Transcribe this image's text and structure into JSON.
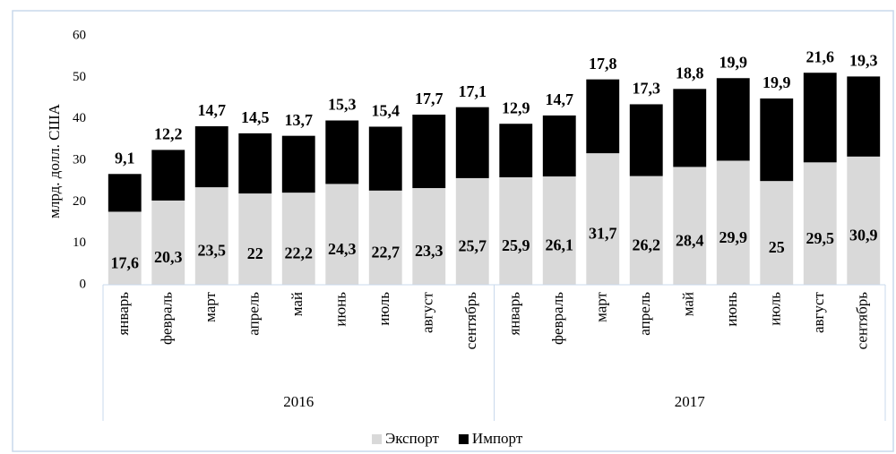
{
  "chart_data": {
    "type": "stacked-bar",
    "y_label": "млрд. долл. США",
    "groups": [
      {
        "name": "2016",
        "categories": [
          "январь",
          "февраль",
          "март",
          "апрель",
          "май",
          "июнь",
          "июль",
          "август",
          "сентябрь"
        ]
      },
      {
        "name": "2017",
        "categories": [
          "январь",
          "февраль",
          "март",
          "апрель",
          "май",
          "июнь",
          "июль",
          "август",
          "сентябрь"
        ]
      }
    ],
    "series": [
      {
        "name": "Экспорт",
        "color": "#d9d9d9",
        "values": [
          17.6,
          20.3,
          23.5,
          22,
          22.2,
          24.3,
          22.7,
          23.3,
          25.7,
          25.9,
          26.1,
          31.7,
          26.2,
          28.4,
          29.9,
          25,
          29.5,
          30.9
        ],
        "value_labels": [
          "17,6",
          "20,3",
          "23,5",
          "22",
          "22,2",
          "24,3",
          "22,7",
          "23,3",
          "25,7",
          "25,9",
          "26,1",
          "31,7",
          "26,2",
          "28,4",
          "29,9",
          "25",
          "29,5",
          "30,9"
        ]
      },
      {
        "name": "Импорт",
        "color": "#000000",
        "values": [
          9.1,
          12.2,
          14.7,
          14.5,
          13.7,
          15.3,
          15.4,
          17.7,
          17.1,
          12.9,
          14.7,
          17.8,
          17.3,
          18.8,
          19.9,
          19.9,
          21.6,
          19.3
        ],
        "value_labels": [
          "9,1",
          "12,2",
          "14,7",
          "14,5",
          "13,7",
          "15,3",
          "15,4",
          "17,7",
          "17,1",
          "12,9",
          "14,7",
          "17,8",
          "17,3",
          "18,8",
          "19,9",
          "19,9",
          "21,6",
          "19,3"
        ]
      }
    ],
    "ylim": [
      0,
      60
    ],
    "yticks": [
      0,
      10,
      20,
      30,
      40,
      50,
      60
    ],
    "legend": "bottom"
  }
}
